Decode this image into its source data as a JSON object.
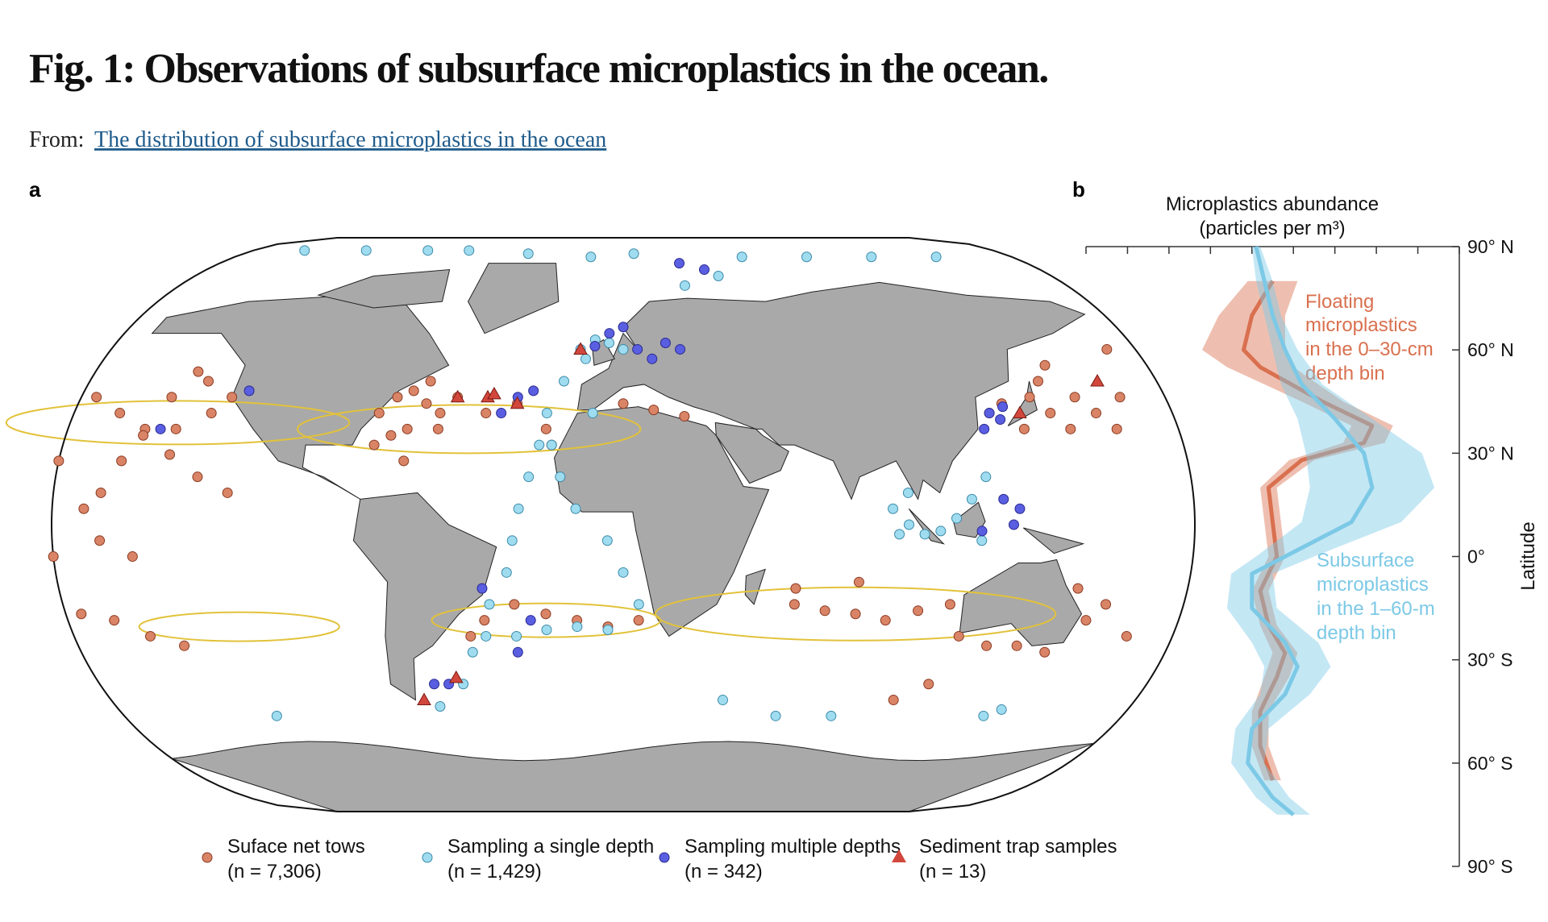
{
  "header": {
    "title": "Fig. 1: Observations of subsurface microplastics in the ocean.",
    "from_label": "From:",
    "source_link": "The distribution of subsurface microplastics in the ocean"
  },
  "chart_data": [
    {
      "type": "scatter",
      "panel": "a",
      "series": [
        {
          "name": "Suface net tows",
          "note": "(n = 7,306)",
          "color": "#d98466",
          "marker": "circle",
          "x": [
            -160,
            -155,
            -150,
            -145,
            -140,
            -170,
            -160,
            -150,
            -140,
            -130,
            -120,
            -175,
            -165,
            -160,
            -150,
            -175,
            -140,
            -130,
            -125,
            -135,
            -170,
            -160,
            -150,
            -140,
            -75,
            -70,
            -65,
            -60,
            -55,
            -65,
            -70,
            -60,
            -50,
            -55,
            -75,
            -65,
            -40,
            -30,
            -20,
            -18,
            5,
            15,
            25,
            -40,
            -30,
            -20,
            -10,
            0,
            10,
            -45,
            60,
            70,
            80,
            90,
            100,
            80,
            60,
            125,
            130,
            135,
            140,
            145,
            150,
            145,
            155,
            160,
            165,
            170,
            150,
            175,
            110,
            115,
            125,
            135,
            145,
            155,
            160,
            150,
            170,
            100,
            110
          ],
          "y": [
            10,
            20,
            30,
            40,
            48,
            40,
            35,
            28,
            22,
            15,
            10,
            20,
            5,
            -5,
            -10,
            -10,
            30,
            35,
            40,
            45,
            -28,
            -30,
            -35,
            -38,
            35,
            40,
            42,
            38,
            35,
            30,
            28,
            45,
            40,
            30,
            25,
            20,
            35,
            38,
            30,
            25,
            38,
            36,
            34,
            -30,
            -25,
            -28,
            -30,
            -32,
            -30,
            -35,
            -25,
            -27,
            -28,
            -30,
            -27,
            -18,
            -20,
            35,
            38,
            30,
            40,
            35,
            30,
            45,
            40,
            35,
            30,
            40,
            50,
            55,
            -25,
            -35,
            -38,
            -38,
            -40,
            -30,
            -25,
            -20,
            -35,
            -55,
            -50
          ]
        },
        {
          "name": "Sampling a single depth",
          "note": "(n = 1,429)",
          "color": "#9fdcf0",
          "marker": "circle",
          "x": [
            -150,
            -120,
            -90,
            -70,
            -40,
            -10,
            10,
            60,
            90,
            120,
            150,
            -10,
            -15,
            -20,
            -22,
            -25,
            -28,
            -30,
            -32,
            -38,
            -45,
            -50,
            -60,
            -5,
            -18,
            -15,
            -10,
            0,
            5,
            10,
            -40,
            -30,
            -20,
            -10,
            0,
            90,
            95,
            100,
            105,
            110,
            115,
            120,
            95,
            92,
            118,
            -5,
            0,
            5,
            -8,
            -120,
            40,
            60,
            80,
            135,
            140,
            30,
            45
          ],
          "y": [
            86,
            86,
            86,
            86,
            85,
            84,
            85,
            84,
            84,
            84,
            84,
            55,
            45,
            35,
            25,
            15,
            5,
            -5,
            -15,
            -25,
            -40,
            -50,
            -57,
            35,
            25,
            15,
            5,
            -5,
            -15,
            -25,
            -35,
            -35,
            -33,
            -32,
            -33,
            5,
            0,
            -3,
            -2,
            2,
            8,
            15,
            10,
            -3,
            -5,
            58,
            57,
            55,
            52,
            -60,
            -55,
            -60,
            -60,
            -60,
            -58,
            75,
            78
          ]
        },
        {
          "name": "Sampling multiple depths",
          "note": "(n = 342)",
          "color": "#5a5ee0",
          "marker": "circle",
          "x": [
            0,
            10,
            20,
            15,
            25,
            5,
            -5,
            -30,
            -25,
            -35,
            -40,
            -25,
            -30,
            125,
            130,
            122,
            128,
            125,
            128,
            118,
            130,
            -120,
            -145,
            -60,
            -55,
            40,
            30
          ],
          "y": [
            60,
            55,
            57,
            52,
            55,
            62,
            56,
            40,
            42,
            35,
            -20,
            -30,
            -40,
            35,
            37,
            30,
            33,
            8,
            0,
            -2,
            5,
            42,
            30,
            -50,
            -50,
            80,
            82
          ]
        },
        {
          "name": "Sediment trap samples",
          "note": "(n = 13)",
          "color": "#d2473c",
          "marker": "triangle",
          "x": [
            -50,
            -40,
            -38,
            -30,
            -10,
            -65,
            -52,
            135,
            165
          ],
          "y": [
            40,
            40,
            41,
            38,
            55,
            -55,
            -48,
            35,
            45
          ]
        }
      ]
    },
    {
      "type": "line",
      "panel": "b",
      "xlabel_lines": [
        "Microplastics abundance",
        "(particles per m³)"
      ],
      "ylabel": "Latitude",
      "xlim": [
        0,
        9
      ],
      "xticks": [
        0,
        1,
        2,
        3,
        4,
        5,
        6,
        7,
        8,
        9
      ],
      "ylim": [
        -90,
        90
      ],
      "yticks": [
        {
          "value": 90,
          "label": "90° N"
        },
        {
          "value": 60,
          "label": "60° N"
        },
        {
          "value": 30,
          "label": "30° N"
        },
        {
          "value": 0,
          "label": "0°"
        },
        {
          "value": -30,
          "label": "30° S"
        },
        {
          "value": -60,
          "label": "60° S"
        },
        {
          "value": -90,
          "label": "90° S"
        }
      ],
      "series": [
        {
          "annotation_lines": [
            "Floating",
            "microplastics",
            "in the 0–30-cm",
            "depth bin"
          ],
          "color": "#d9704f",
          "latitude": [
            80,
            70,
            60,
            55,
            45,
            38,
            33,
            28,
            20,
            10,
            0,
            -10,
            -20,
            -28,
            -35,
            -45,
            -55,
            -65
          ],
          "values": [
            4.5,
            4.0,
            3.8,
            4.2,
            5.7,
            6.9,
            6.7,
            5.2,
            4.4,
            4.5,
            4.6,
            4.2,
            4.4,
            4.8,
            4.6,
            4.2,
            4.2,
            4.5
          ],
          "spread": [
            0.6,
            0.8,
            1.0,
            0.8,
            0.5,
            0.5,
            0.5,
            0.3,
            0.2,
            0.2,
            0.2,
            0.2,
            0.2,
            0.3,
            0.3,
            0.2,
            0.2,
            0.2
          ]
        },
        {
          "annotation_lines": [
            "Subsurface",
            "microplastics",
            "in the 1–60-m",
            "depth bin"
          ],
          "color": "#7cc9e6",
          "latitude": [
            90,
            80,
            70,
            60,
            50,
            40,
            30,
            20,
            10,
            0,
            -5,
            -15,
            -25,
            -32,
            -40,
            -50,
            -60,
            -70,
            -75
          ],
          "values": [
            4.1,
            4.3,
            4.5,
            4.8,
            5.2,
            6.0,
            6.7,
            6.9,
            6.4,
            4.8,
            4.0,
            4.0,
            4.8,
            5.1,
            4.8,
            4.0,
            3.9,
            4.5,
            5.0
          ],
          "spread": [
            0.1,
            0.2,
            0.2,
            0.3,
            0.5,
            0.9,
            1.4,
            1.5,
            1.2,
            0.7,
            0.5,
            0.6,
            0.8,
            0.8,
            0.6,
            0.4,
            0.4,
            0.4,
            0.4
          ]
        }
      ]
    }
  ]
}
